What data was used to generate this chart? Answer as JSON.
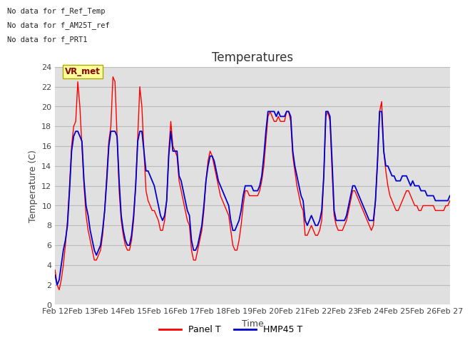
{
  "title": "Temperatures",
  "xlabel": "Time",
  "ylabel": "Temperature (C)",
  "ylim": [
    0,
    24
  ],
  "yticks": [
    0,
    2,
    4,
    6,
    8,
    10,
    12,
    14,
    16,
    18,
    20,
    22,
    24
  ],
  "xtick_labels": [
    "Feb 12",
    "Feb 13",
    "Feb 14",
    "Feb 15",
    "Feb 16",
    "Feb 17",
    "Feb 18",
    "Feb 19",
    "Feb 20",
    "Feb 21",
    "Feb 22",
    "Feb 23",
    "Feb 24",
    "Feb 25",
    "Feb 26",
    "Feb 27"
  ],
  "panel_color": "#ff0000",
  "hmp45_color": "#0000cc",
  "legend_labels": [
    "Panel T",
    "HMP45 T"
  ],
  "no_data_texts": [
    "No data for f_Ref_Temp",
    "No data for f_AM25T_ref",
    "No data for f_PRT1"
  ],
  "vr_met_label": "VR_met",
  "bg_color": "#e0e0e0",
  "fig_bg_color": "#ffffff",
  "title_fontsize": 12,
  "axis_fontsize": 9,
  "tick_fontsize": 8,
  "panel_t_data": [
    3.5,
    2.0,
    1.5,
    2.5,
    4.0,
    6.0,
    8.5,
    12.0,
    16.0,
    18.0,
    18.5,
    22.5,
    20.0,
    16.0,
    12.0,
    9.0,
    7.5,
    6.5,
    5.5,
    4.5,
    4.5,
    5.0,
    5.5,
    7.0,
    9.5,
    13.0,
    16.5,
    18.0,
    23.0,
    22.5,
    17.0,
    11.5,
    8.5,
    7.0,
    6.0,
    5.5,
    5.5,
    6.5,
    8.5,
    12.0,
    17.0,
    22.0,
    20.0,
    15.5,
    11.5,
    10.5,
    10.0,
    9.5,
    9.5,
    9.0,
    8.5,
    7.5,
    7.5,
    8.5,
    10.5,
    15.5,
    18.5,
    16.0,
    15.5,
    15.0,
    12.5,
    11.5,
    10.5,
    9.5,
    8.5,
    8.0,
    5.5,
    4.5,
    4.5,
    5.5,
    6.5,
    7.5,
    9.5,
    12.5,
    14.5,
    15.5,
    15.0,
    14.0,
    13.0,
    12.0,
    11.0,
    10.5,
    10.0,
    9.5,
    9.0,
    7.5,
    6.0,
    5.5,
    5.5,
    6.5,
    8.0,
    10.0,
    11.5,
    11.5,
    11.0,
    11.0,
    11.0,
    11.0,
    11.0,
    11.5,
    12.5,
    14.0,
    16.5,
    19.0,
    19.5,
    19.0,
    18.5,
    18.5,
    19.0,
    18.5,
    18.5,
    18.5,
    19.5,
    19.5,
    18.5,
    15.0,
    13.5,
    12.0,
    11.0,
    10.0,
    9.5,
    7.0,
    7.0,
    7.5,
    8.0,
    7.5,
    7.0,
    7.0,
    7.5,
    8.5,
    13.0,
    19.0,
    19.5,
    18.5,
    13.5,
    9.0,
    8.0,
    7.5,
    7.5,
    7.5,
    8.0,
    8.5,
    9.5,
    10.5,
    11.5,
    11.5,
    11.0,
    10.5,
    10.0,
    9.5,
    9.0,
    8.5,
    8.0,
    7.5,
    8.0,
    10.5,
    14.5,
    19.5,
    20.5,
    15.5,
    13.5,
    12.0,
    11.0,
    10.5,
    10.0,
    9.5,
    9.5,
    10.0,
    10.5,
    11.0,
    11.5,
    11.5,
    11.0,
    10.5,
    10.0,
    10.0,
    9.5,
    9.5,
    10.0,
    10.0,
    10.0,
    10.0,
    10.0,
    10.0,
    9.5,
    9.5,
    9.5,
    9.5,
    9.5,
    10.0,
    10.0,
    10.5
  ],
  "hmp45_t_data": [
    3.0,
    2.0,
    2.5,
    4.0,
    5.5,
    6.5,
    8.0,
    11.5,
    15.5,
    17.0,
    17.5,
    17.5,
    17.0,
    16.5,
    12.5,
    10.0,
    9.0,
    7.5,
    6.5,
    5.5,
    5.0,
    5.5,
    6.0,
    7.5,
    9.5,
    12.5,
    16.0,
    17.5,
    17.5,
    17.5,
    17.0,
    12.5,
    9.0,
    7.5,
    6.5,
    6.0,
    6.0,
    7.0,
    9.0,
    12.0,
    16.5,
    17.5,
    17.5,
    15.5,
    13.5,
    13.5,
    13.0,
    12.5,
    12.0,
    11.0,
    10.0,
    9.0,
    8.5,
    9.0,
    10.5,
    15.0,
    17.5,
    15.5,
    15.5,
    15.5,
    13.0,
    12.5,
    11.5,
    10.5,
    9.5,
    9.0,
    6.5,
    5.5,
    5.5,
    6.0,
    7.0,
    8.0,
    10.0,
    12.5,
    14.0,
    15.0,
    15.0,
    14.5,
    13.5,
    12.5,
    12.0,
    11.5,
    11.0,
    10.5,
    10.0,
    8.5,
    7.5,
    7.5,
    8.0,
    8.5,
    9.5,
    11.0,
    12.0,
    12.0,
    12.0,
    12.0,
    11.5,
    11.5,
    11.5,
    12.0,
    13.0,
    15.0,
    17.5,
    19.5,
    19.5,
    19.5,
    19.5,
    19.0,
    19.5,
    19.0,
    19.0,
    19.0,
    19.5,
    19.5,
    19.0,
    15.5,
    14.0,
    13.0,
    12.0,
    11.0,
    10.5,
    8.5,
    8.0,
    8.5,
    9.0,
    8.5,
    8.0,
    8.0,
    8.5,
    9.5,
    13.0,
    19.5,
    19.5,
    19.0,
    14.5,
    9.5,
    8.5,
    8.5,
    8.5,
    8.5,
    8.5,
    9.0,
    10.0,
    11.0,
    12.0,
    12.0,
    11.5,
    11.0,
    10.5,
    10.0,
    9.5,
    9.0,
    8.5,
    8.5,
    8.5,
    10.5,
    14.5,
    19.5,
    19.5,
    15.5,
    14.0,
    14.0,
    13.5,
    13.0,
    13.0,
    12.5,
    12.5,
    12.5,
    13.0,
    13.0,
    13.0,
    12.5,
    12.0,
    12.5,
    12.0,
    12.0,
    12.0,
    11.5,
    11.5,
    11.5,
    11.0,
    11.0,
    11.0,
    11.0,
    10.5,
    10.5,
    10.5,
    10.5,
    10.5,
    10.5,
    10.5,
    11.0
  ]
}
